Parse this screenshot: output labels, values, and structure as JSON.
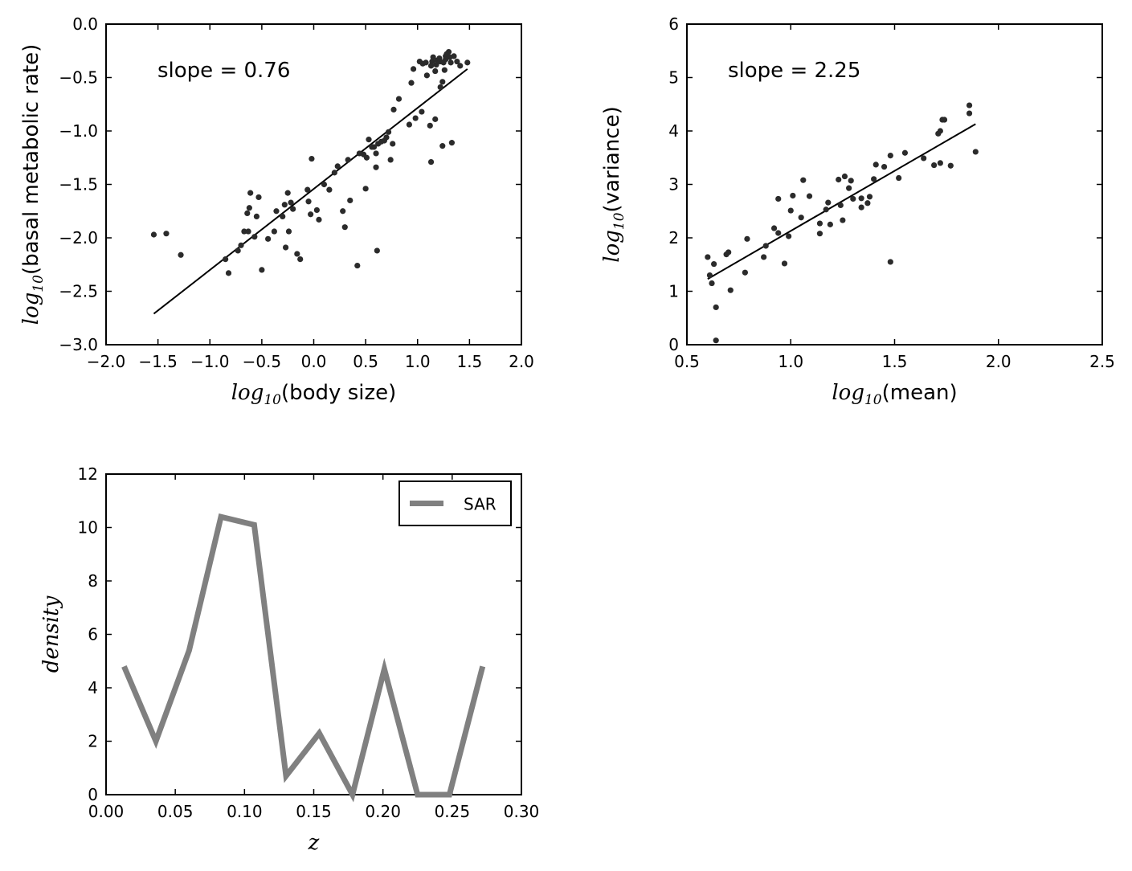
{
  "chart_data": [
    {
      "type": "scatter",
      "xlabel": {
        "math": "log",
        "sub": "10",
        "text": "(body size)"
      },
      "ylabel": {
        "math": "log",
        "sub": "10",
        "text": "(basal metabolic rate)"
      },
      "annotation": "slope = 0.76",
      "xlim": [
        -2.0,
        2.0
      ],
      "ylim": [
        -3.0,
        0.0
      ],
      "xticks": [
        "−2.0",
        "−1.5",
        "−1.0",
        "−0.5",
        "0.0",
        "0.5",
        "1.0",
        "1.5",
        "2.0"
      ],
      "yticks": [
        "0.0",
        "−0.5",
        "−1.0",
        "−1.5",
        "−2.0",
        "−2.5",
        "−3.0"
      ],
      "points": [
        [
          -1.54,
          -1.97
        ],
        [
          -1.42,
          -1.96
        ],
        [
          -1.28,
          -2.16
        ],
        [
          -0.85,
          -2.2
        ],
        [
          -0.82,
          -2.33
        ],
        [
          -0.73,
          -2.12
        ],
        [
          -0.7,
          -2.07
        ],
        [
          -0.67,
          -1.94
        ],
        [
          -0.64,
          -1.77
        ],
        [
          -0.62,
          -1.72
        ],
        [
          -0.61,
          -1.58
        ],
        [
          -0.63,
          -1.94
        ],
        [
          -0.57,
          -1.99
        ],
        [
          -0.55,
          -1.8
        ],
        [
          -0.53,
          -1.62
        ],
        [
          -0.5,
          -2.3
        ],
        [
          -0.44,
          -2.01
        ],
        [
          -0.38,
          -1.94
        ],
        [
          -0.36,
          -1.75
        ],
        [
          -0.3,
          -1.8
        ],
        [
          -0.28,
          -1.69
        ],
        [
          -0.27,
          -2.09
        ],
        [
          -0.25,
          -1.58
        ],
        [
          -0.24,
          -1.94
        ],
        [
          -0.22,
          -1.67
        ],
        [
          -0.2,
          -1.73
        ],
        [
          -0.16,
          -2.15
        ],
        [
          -0.13,
          -2.2
        ],
        [
          -0.06,
          -1.55
        ],
        [
          -0.05,
          -1.66
        ],
        [
          -0.03,
          -1.78
        ],
        [
          -0.02,
          -1.26
        ],
        [
          0.03,
          -1.74
        ],
        [
          0.05,
          -1.83
        ],
        [
          0.1,
          -1.5
        ],
        [
          0.15,
          -1.55
        ],
        [
          0.2,
          -1.39
        ],
        [
          0.23,
          -1.33
        ],
        [
          0.28,
          -1.75
        ],
        [
          0.3,
          -1.9
        ],
        [
          0.33,
          -1.27
        ],
        [
          0.35,
          -1.65
        ],
        [
          0.42,
          -2.26
        ],
        [
          0.44,
          -1.21
        ],
        [
          0.48,
          -1.22
        ],
        [
          0.5,
          -1.54
        ],
        [
          0.51,
          -1.25
        ],
        [
          0.53,
          -1.08
        ],
        [
          0.56,
          -1.15
        ],
        [
          0.58,
          -1.15
        ],
        [
          0.6,
          -1.21
        ],
        [
          0.6,
          -1.34
        ],
        [
          0.61,
          -2.12
        ],
        [
          0.62,
          -1.12
        ],
        [
          0.65,
          -1.1
        ],
        [
          0.68,
          -1.09
        ],
        [
          0.7,
          -1.06
        ],
        [
          0.72,
          -1.01
        ],
        [
          0.74,
          -1.27
        ],
        [
          0.76,
          -1.12
        ],
        [
          0.77,
          -0.8
        ],
        [
          0.82,
          -0.7
        ],
        [
          0.92,
          -0.94
        ],
        [
          0.94,
          -0.55
        ],
        [
          0.96,
          -0.42
        ],
        [
          0.98,
          -0.88
        ],
        [
          1.02,
          -0.35
        ],
        [
          1.04,
          -0.82
        ],
        [
          1.05,
          -0.37
        ],
        [
          1.08,
          -0.36
        ],
        [
          1.09,
          -0.48
        ],
        [
          1.12,
          -0.95
        ],
        [
          1.13,
          -1.29
        ],
        [
          1.13,
          -0.39
        ],
        [
          1.14,
          -0.35
        ],
        [
          1.15,
          -0.31
        ],
        [
          1.17,
          -0.89
        ],
        [
          1.17,
          -0.44
        ],
        [
          1.18,
          -0.38
        ],
        [
          1.19,
          -0.34
        ],
        [
          1.21,
          -0.32
        ],
        [
          1.22,
          -0.35
        ],
        [
          1.22,
          -0.59
        ],
        [
          1.24,
          -0.54
        ],
        [
          1.24,
          -1.14
        ],
        [
          1.25,
          -0.36
        ],
        [
          1.26,
          -0.43
        ],
        [
          1.27,
          -0.33
        ],
        [
          1.27,
          -0.3
        ],
        [
          1.28,
          -0.28
        ],
        [
          1.3,
          -0.26
        ],
        [
          1.31,
          -0.31
        ],
        [
          1.32,
          -0.36
        ],
        [
          1.33,
          -1.11
        ],
        [
          1.35,
          -0.3
        ],
        [
          1.38,
          -0.35
        ],
        [
          1.41,
          -0.39
        ],
        [
          1.48,
          -0.36
        ]
      ],
      "fit": [
        [
          -1.54,
          -2.71
        ],
        [
          1.48,
          -0.42
        ]
      ]
    },
    {
      "type": "scatter",
      "xlabel": {
        "math": "log",
        "sub": "10",
        "text": "(mean)"
      },
      "ylabel": {
        "math": "log",
        "sub": "10",
        "text": "(variance)"
      },
      "annotation": "slope = 2.25",
      "xlim": [
        0.5,
        2.5
      ],
      "ylim": [
        0,
        6
      ],
      "xticks": [
        "0.5",
        "1.0",
        "1.5",
        "2.0",
        "2.5"
      ],
      "yticks": [
        "6",
        "5",
        "4",
        "3",
        "2",
        "1",
        "0"
      ],
      "points": [
        [
          0.6,
          1.64
        ],
        [
          0.61,
          1.3
        ],
        [
          0.62,
          1.15
        ],
        [
          0.63,
          1.51
        ],
        [
          0.64,
          0.08
        ],
        [
          0.64,
          0.7
        ],
        [
          0.69,
          1.69
        ],
        [
          0.7,
          1.73
        ],
        [
          0.71,
          1.02
        ],
        [
          0.78,
          1.35
        ],
        [
          0.79,
          1.98
        ],
        [
          0.87,
          1.64
        ],
        [
          0.88,
          1.85
        ],
        [
          0.92,
          2.18
        ],
        [
          0.94,
          2.73
        ],
        [
          0.94,
          2.09
        ],
        [
          0.97,
          1.52
        ],
        [
          0.99,
          2.03
        ],
        [
          1.0,
          2.51
        ],
        [
          1.01,
          2.79
        ],
        [
          1.05,
          2.38
        ],
        [
          1.06,
          3.08
        ],
        [
          1.09,
          2.78
        ],
        [
          1.14,
          2.08
        ],
        [
          1.14,
          2.27
        ],
        [
          1.17,
          2.53
        ],
        [
          1.18,
          2.66
        ],
        [
          1.19,
          2.25
        ],
        [
          1.23,
          3.09
        ],
        [
          1.24,
          2.61
        ],
        [
          1.25,
          2.33
        ],
        [
          1.26,
          3.15
        ],
        [
          1.28,
          2.93
        ],
        [
          1.29,
          3.07
        ],
        [
          1.3,
          2.73
        ],
        [
          1.34,
          2.57
        ],
        [
          1.34,
          2.74
        ],
        [
          1.37,
          2.65
        ],
        [
          1.38,
          2.77
        ],
        [
          1.4,
          3.1
        ],
        [
          1.41,
          3.37
        ],
        [
          1.45,
          3.33
        ],
        [
          1.48,
          3.54
        ],
        [
          1.48,
          1.55
        ],
        [
          1.52,
          3.12
        ],
        [
          1.55,
          3.59
        ],
        [
          1.64,
          3.49
        ],
        [
          1.69,
          3.36
        ],
        [
          1.71,
          3.95
        ],
        [
          1.72,
          4.0
        ],
        [
          1.72,
          3.4
        ],
        [
          1.73,
          4.21
        ],
        [
          1.74,
          4.21
        ],
        [
          1.77,
          3.35
        ],
        [
          1.86,
          4.48
        ],
        [
          1.86,
          4.33
        ],
        [
          1.89,
          3.61
        ]
      ],
      "fit": [
        [
          0.6,
          1.23
        ],
        [
          1.89,
          4.13
        ]
      ]
    },
    {
      "type": "line",
      "xlabel": "z",
      "ylabel": "density",
      "xlim": [
        0.0,
        0.3
      ],
      "ylim": [
        0,
        12
      ],
      "xticks": [
        "0.00",
        "0.05",
        "0.10",
        "0.15",
        "0.20",
        "0.25",
        "0.30"
      ],
      "yticks": [
        "12",
        "10",
        "8",
        "6",
        "4",
        "2",
        "0"
      ],
      "legend": {
        "position": "upper-right",
        "entries": [
          "SAR"
        ]
      },
      "series": [
        {
          "name": "SAR",
          "color": "#808080",
          "x": [
            0.013,
            0.036,
            0.06,
            0.083,
            0.107,
            0.13,
            0.154,
            0.178,
            0.201,
            0.225,
            0.248,
            0.272
          ],
          "y": [
            4.8,
            2.0,
            5.4,
            10.4,
            10.1,
            0.7,
            2.3,
            0.0,
            4.7,
            0.0,
            0.0,
            4.8
          ]
        }
      ]
    }
  ],
  "colors": {
    "points": "#2b2b2b",
    "fit_line": "#000000",
    "series": "#808080"
  }
}
